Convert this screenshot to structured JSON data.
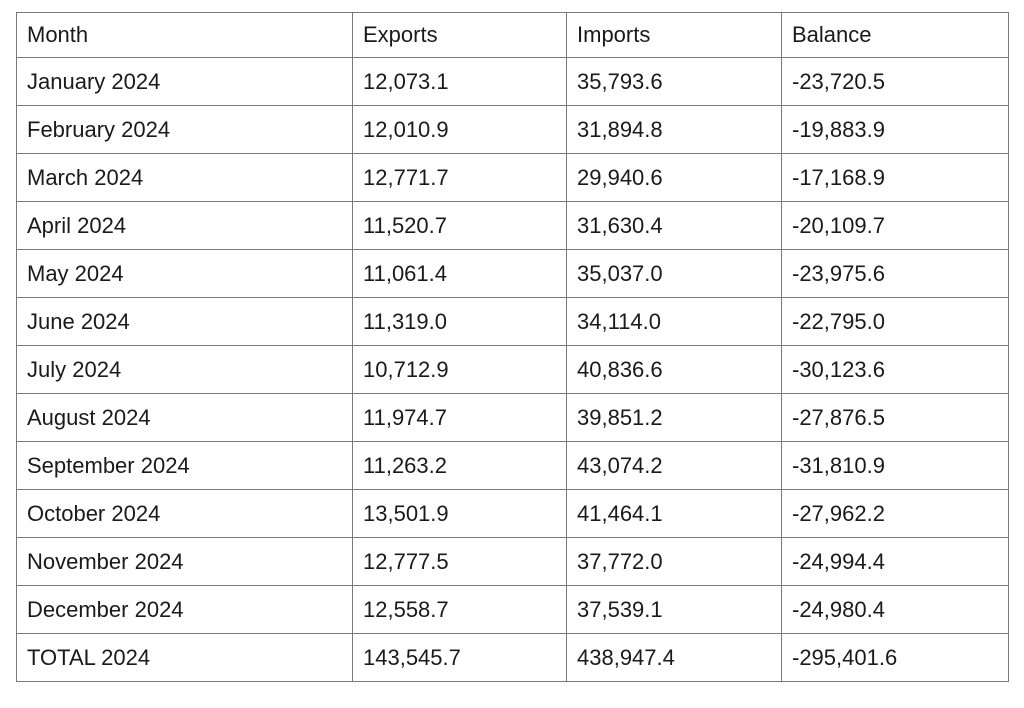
{
  "table": {
    "headers": [
      "Month",
      "Exports",
      "Imports",
      "Balance"
    ],
    "rows": [
      {
        "month": "January 2024",
        "exports": "12,073.1",
        "imports": "35,793.6",
        "balance": "-23,720.5"
      },
      {
        "month": "February 2024",
        "exports": "12,010.9",
        "imports": "31,894.8",
        "balance": "-19,883.9"
      },
      {
        "month": "March 2024",
        "exports": "12,771.7",
        "imports": "29,940.6",
        "balance": "-17,168.9"
      },
      {
        "month": "April 2024",
        "exports": "11,520.7",
        "imports": "31,630.4",
        "balance": "-20,109.7"
      },
      {
        "month": "May 2024",
        "exports": "11,061.4",
        "imports": "35,037.0",
        "balance": "-23,975.6"
      },
      {
        "month": "June 2024",
        "exports": "11,319.0",
        "imports": "34,114.0",
        "balance": "-22,795.0"
      },
      {
        "month": "July 2024",
        "exports": "10,712.9",
        "imports": "40,836.6",
        "balance": "-30,123.6"
      },
      {
        "month": "August 2024",
        "exports": "11,974.7",
        "imports": "39,851.2",
        "balance": "-27,876.5"
      },
      {
        "month": "September 2024",
        "exports": "11,263.2",
        "imports": "43,074.2",
        "balance": "-31,810.9"
      },
      {
        "month": "October 2024",
        "exports": "13,501.9",
        "imports": "41,464.1",
        "balance": "-27,962.2"
      },
      {
        "month": "November 2024",
        "exports": "12,777.5",
        "imports": "37,772.0",
        "balance": "-24,994.4"
      },
      {
        "month": "December 2024",
        "exports": "12,558.7",
        "imports": "37,539.1",
        "balance": "-24,980.4"
      }
    ],
    "total": {
      "month": "TOTAL 2024",
      "exports": "143,545.7",
      "imports": "438,947.4",
      "balance": "-295,401.6"
    }
  },
  "chart_data": {
    "type": "table",
    "title": "",
    "columns": [
      "Month",
      "Exports",
      "Imports",
      "Balance"
    ],
    "categories": [
      "January 2024",
      "February 2024",
      "March 2024",
      "April 2024",
      "May 2024",
      "June 2024",
      "July 2024",
      "August 2024",
      "September 2024",
      "October 2024",
      "November 2024",
      "December 2024"
    ],
    "series": [
      {
        "name": "Exports",
        "values": [
          12073.1,
          12010.9,
          12771.7,
          11520.7,
          11061.4,
          11319.0,
          10712.9,
          11974.7,
          11263.2,
          13501.9,
          12777.5,
          12558.7
        ]
      },
      {
        "name": "Imports",
        "values": [
          35793.6,
          31894.8,
          29940.6,
          31630.4,
          35037.0,
          34114.0,
          40836.6,
          39851.2,
          43074.2,
          41464.1,
          37772.0,
          37539.1
        ]
      },
      {
        "name": "Balance",
        "values": [
          -23720.5,
          -19883.9,
          -17168.9,
          -20109.7,
          -23975.6,
          -22795.0,
          -30123.6,
          -27876.5,
          -31810.9,
          -27962.2,
          -24994.4,
          -24980.4
        ]
      }
    ],
    "totals": {
      "label": "TOTAL 2024",
      "Exports": 143545.7,
      "Imports": 438947.4,
      "Balance": -295401.6
    }
  }
}
